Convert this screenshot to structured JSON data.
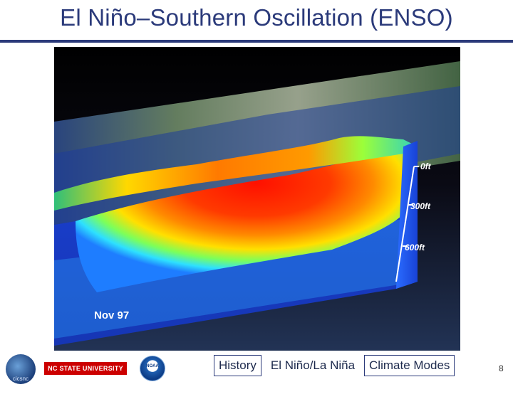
{
  "slide": {
    "title": "El Niño–Southern Oscillation (ENSO)",
    "page_number": "8"
  },
  "figure": {
    "depth_labels": [
      "0ft",
      "300ft",
      "600ft"
    ],
    "date_label": "Nov 97",
    "colors": {
      "background": "#000000",
      "ocean_blue": "#1e49d8",
      "warm_red": "#ff1a00",
      "cool_cyan": "#38d8ff"
    }
  },
  "footer": {
    "logos": [
      "cicsnc",
      "NC STATE UNIVERSITY",
      "NOAA"
    ],
    "cicsnc_label": "cicsnc",
    "ncsu_label": "NC STATE UNIVERSITY",
    "noaa_label": "NOAA",
    "nav": [
      {
        "label": "History"
      },
      {
        "label": "El Niño/La Niña"
      },
      {
        "label": "Climate Modes"
      }
    ]
  }
}
